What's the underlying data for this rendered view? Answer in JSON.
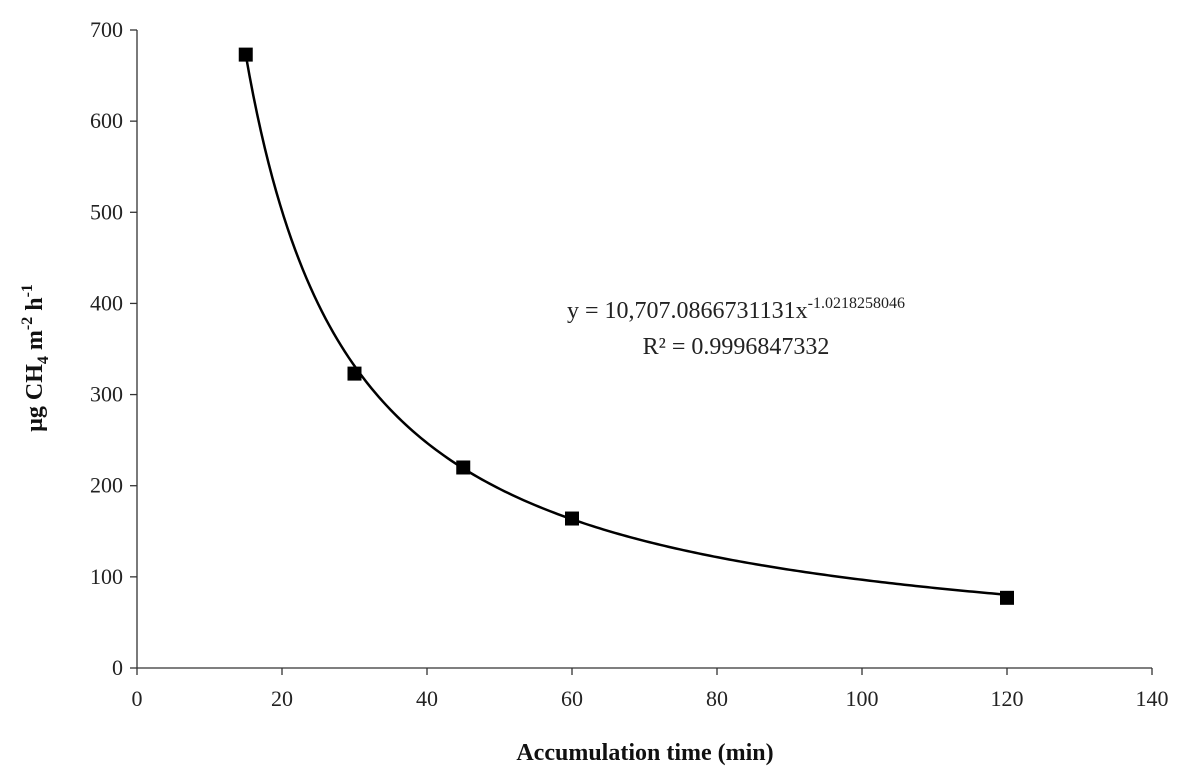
{
  "chart_data": {
    "type": "scatter",
    "title": "",
    "xlabel": "Accumulation time (min)",
    "ylabel": {
      "prefix": "µg CH",
      "sub": "4",
      "mid1": " m",
      "sup1": "-2",
      "mid2": " h",
      "sup2": "-1"
    },
    "xlim": [
      0,
      140
    ],
    "ylim": [
      0,
      700
    ],
    "x_ticks": [
      0,
      20,
      40,
      60,
      80,
      100,
      120,
      140
    ],
    "y_ticks": [
      0,
      100,
      200,
      300,
      400,
      500,
      600,
      700
    ],
    "grid": false,
    "legend": "none",
    "series": [
      {
        "marker": "square",
        "color": "#000000",
        "x": [
          15,
          30,
          45,
          60,
          120
        ],
        "y": [
          673,
          323,
          220,
          164,
          77
        ]
      }
    ],
    "trendline": {
      "kind": "power",
      "a": 10707.0866731131,
      "b": -1.0218258046,
      "color": "#000000",
      "equation": {
        "base": "y = 10,707.0866731131x",
        "exponent": "-1.0218258046"
      },
      "r_squared": {
        "label": "R²",
        "text": " = 0.9996847332"
      }
    }
  }
}
